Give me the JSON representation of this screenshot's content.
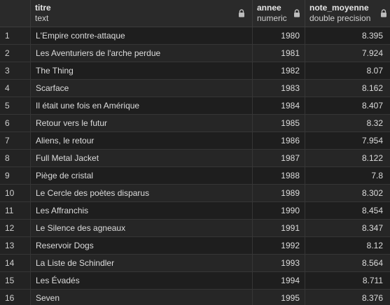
{
  "columns": [
    {
      "name": "",
      "type": ""
    },
    {
      "name": "titre",
      "type": "text"
    },
    {
      "name": "annee",
      "type": "numeric"
    },
    {
      "name": "note_moyenne",
      "type": "double precision"
    }
  ],
  "rows": [
    {
      "n": "1",
      "titre": "L'Empire contre-attaque",
      "annee": "1980",
      "note": "8.395"
    },
    {
      "n": "2",
      "titre": "Les Aventuriers de l'arche perdue",
      "annee": "1981",
      "note": "7.924"
    },
    {
      "n": "3",
      "titre": "The Thing",
      "annee": "1982",
      "note": "8.07"
    },
    {
      "n": "4",
      "titre": "Scarface",
      "annee": "1983",
      "note": "8.162"
    },
    {
      "n": "5",
      "titre": "Il était une fois en Amérique",
      "annee": "1984",
      "note": "8.407"
    },
    {
      "n": "6",
      "titre": "Retour vers le futur",
      "annee": "1985",
      "note": "8.32"
    },
    {
      "n": "7",
      "titre": "Aliens, le retour",
      "annee": "1986",
      "note": "7.954"
    },
    {
      "n": "8",
      "titre": "Full Metal Jacket",
      "annee": "1987",
      "note": "8.122"
    },
    {
      "n": "9",
      "titre": "Piège de cristal",
      "annee": "1988",
      "note": "7.8"
    },
    {
      "n": "10",
      "titre": "Le Cercle des poètes disparus",
      "annee": "1989",
      "note": "8.302"
    },
    {
      "n": "11",
      "titre": "Les Affranchis",
      "annee": "1990",
      "note": "8.454"
    },
    {
      "n": "12",
      "titre": "Le Silence des agneaux",
      "annee": "1991",
      "note": "8.347"
    },
    {
      "n": "13",
      "titre": "Reservoir Dogs",
      "annee": "1992",
      "note": "8.12"
    },
    {
      "n": "14",
      "titre": "La Liste de Schindler",
      "annee": "1993",
      "note": "8.564"
    },
    {
      "n": "15",
      "titre": "Les Évadés",
      "annee": "1994",
      "note": "8.711"
    },
    {
      "n": "16",
      "titre": "Seven",
      "annee": "1995",
      "note": "8.376"
    }
  ],
  "icons": {
    "locked_column": "lock-icon"
  },
  "colors": {
    "background": "#1e1e1e",
    "header": "#2a2a2a",
    "row_alt": "#262626",
    "gridline": "#363636"
  }
}
